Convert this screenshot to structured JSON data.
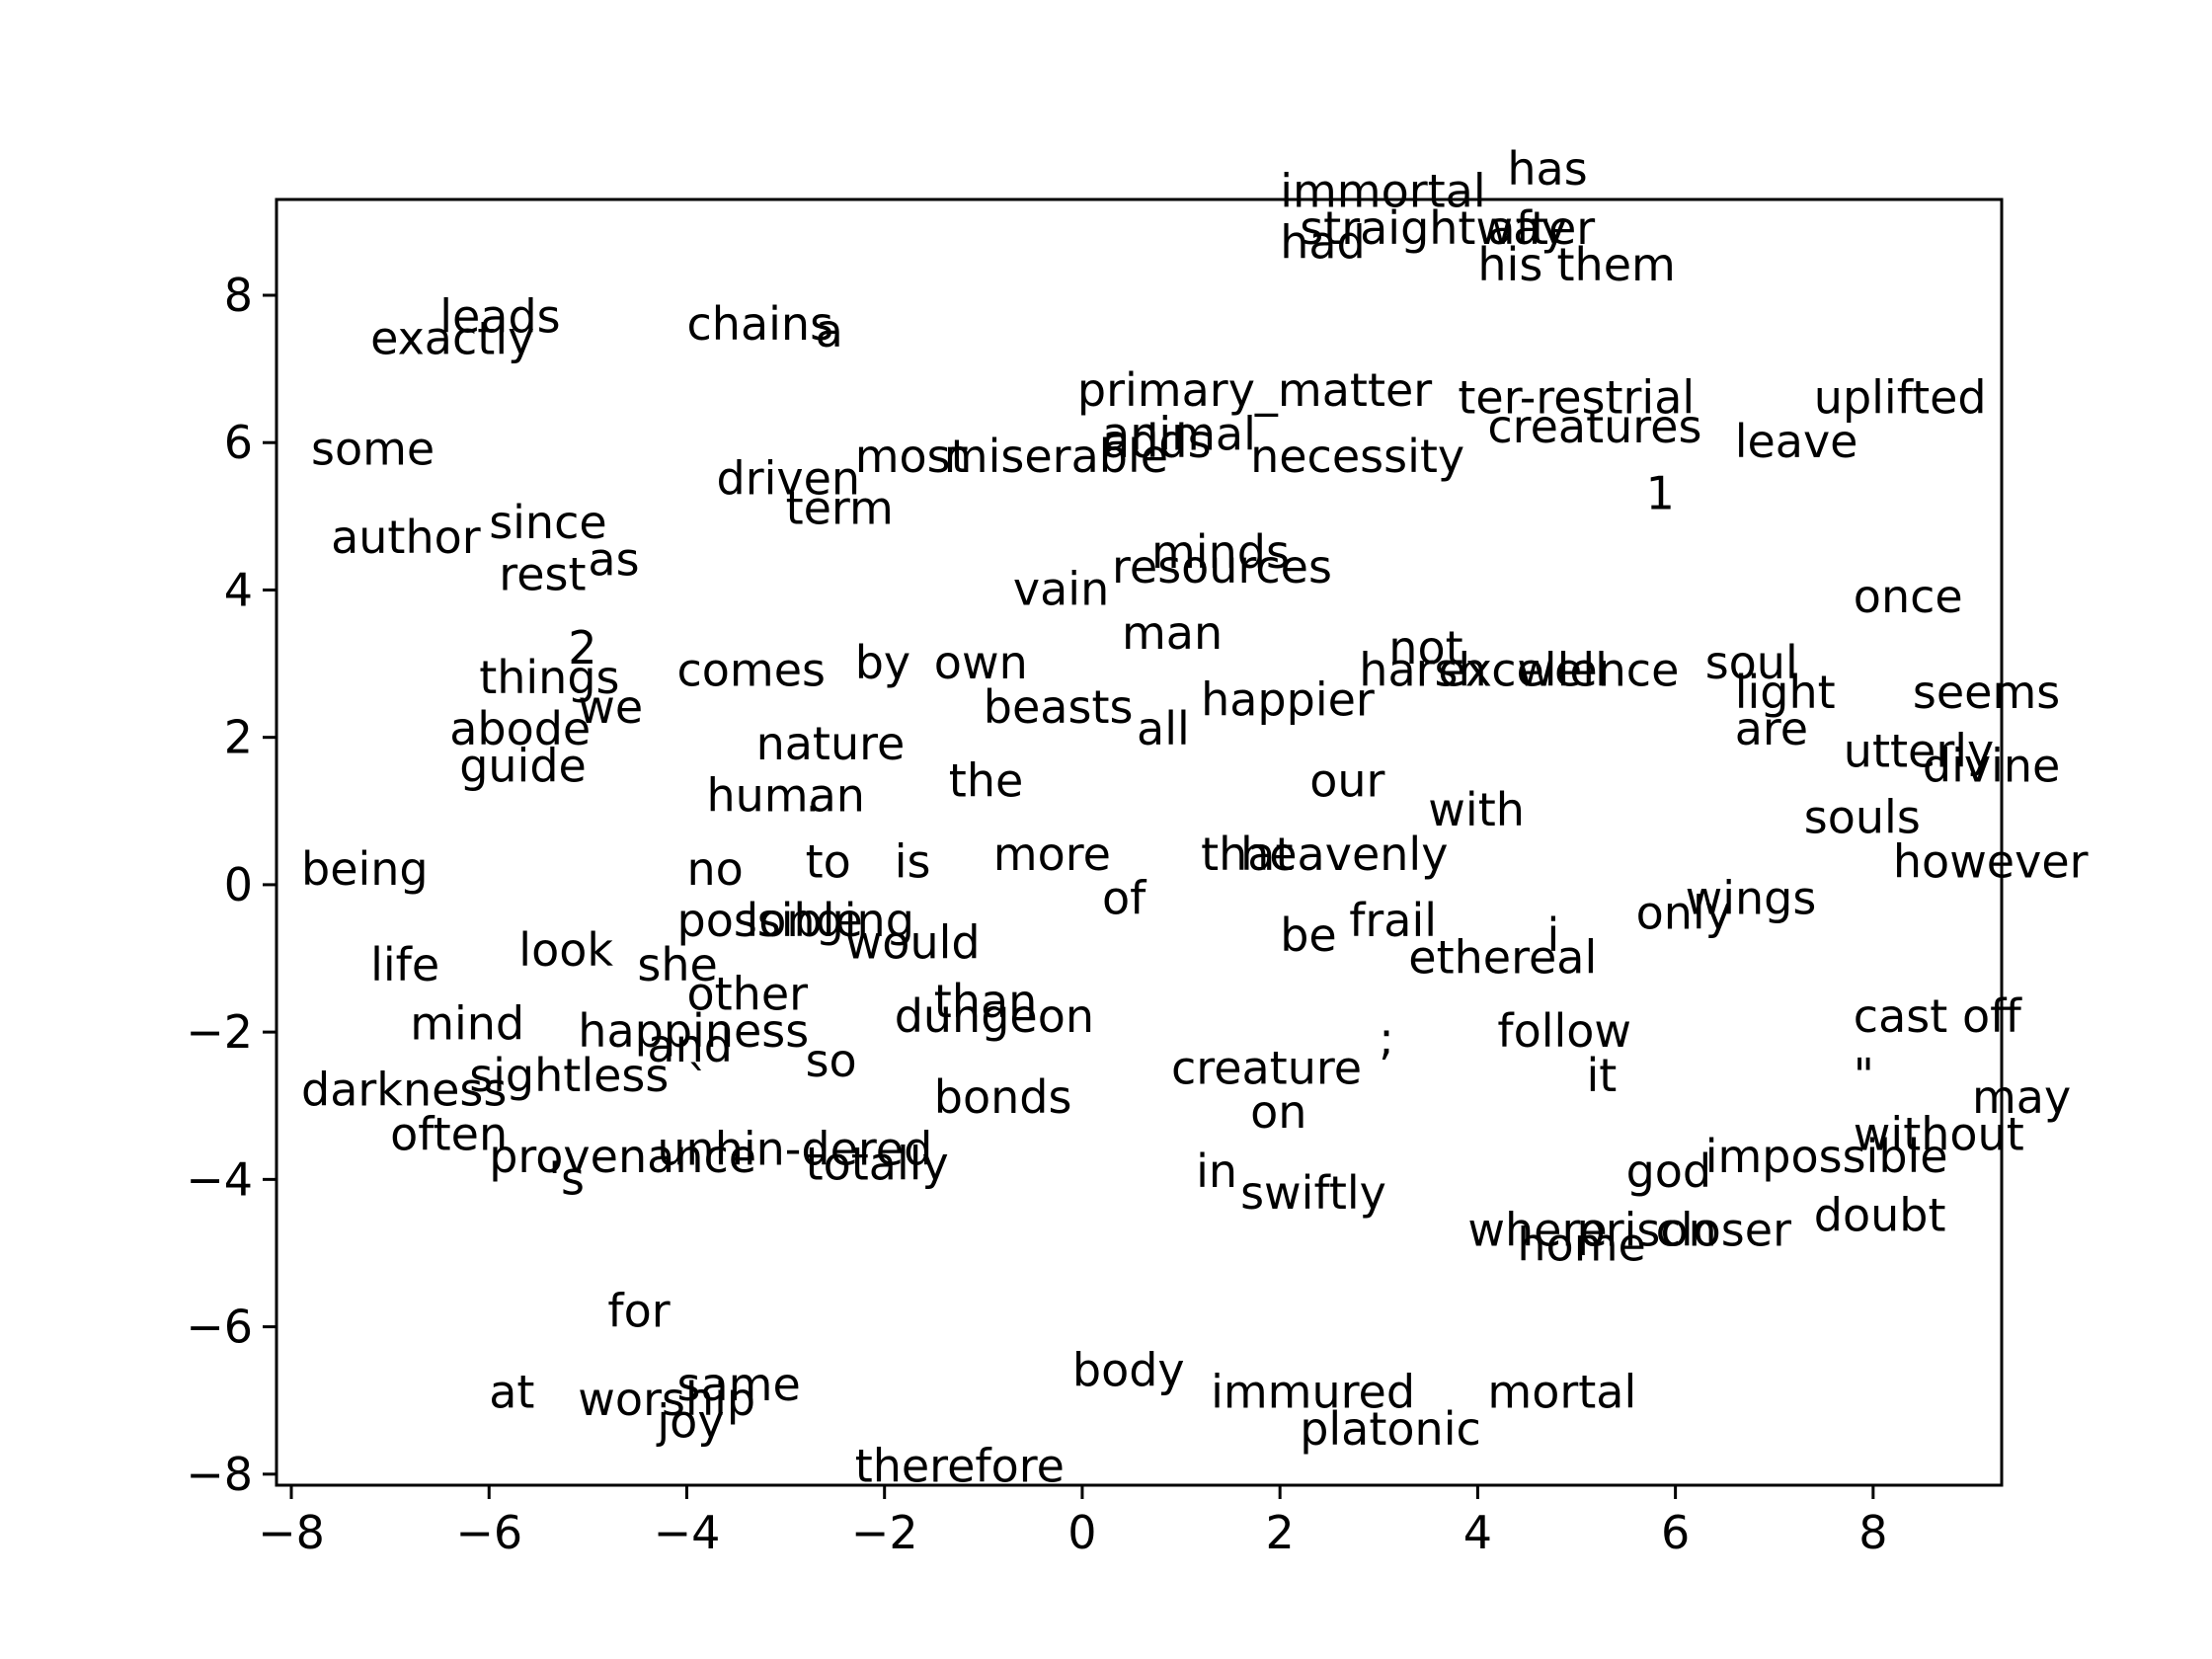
{
  "chart_data": {
    "type": "scatter",
    "title": "",
    "xlabel": "",
    "ylabel": "",
    "xlim": [
      -8.15,
      9.3
    ],
    "ylim": [
      -8.15,
      9.3
    ],
    "xticks": [
      -8,
      -6,
      -4,
      -2,
      0,
      2,
      4,
      6,
      8
    ],
    "yticks": [
      -8,
      -6,
      -4,
      -2,
      0,
      2,
      4,
      6,
      8
    ],
    "tick_labels": {
      "x": [
        "−8",
        "−6",
        "−4",
        "−2",
        "0",
        "2",
        "4",
        "6",
        "8"
      ],
      "y": [
        "−8",
        "−6",
        "−4",
        "−2",
        "0",
        "2",
        "4",
        "6",
        "8"
      ]
    },
    "grid": false,
    "points": [
      {
        "label": "immortal",
        "x": 2.0,
        "y": 9.2
      },
      {
        "label": "has",
        "x": 4.3,
        "y": 9.5
      },
      {
        "label": "had",
        "x": 2.0,
        "y": 8.5
      },
      {
        "label": "straightway",
        "x": 2.2,
        "y": 8.7
      },
      {
        "label": "after",
        "x": 4.1,
        "y": 8.7
      },
      {
        "label": "his",
        "x": 4.0,
        "y": 8.2
      },
      {
        "label": "them",
        "x": 4.8,
        "y": 8.2
      },
      {
        "label": "leads",
        "x": -6.5,
        "y": 7.5
      },
      {
        "label": "exactly",
        "x": -7.2,
        "y": 7.2
      },
      {
        "label": "chains",
        "x": -4.0,
        "y": 7.4
      },
      {
        "label": "a",
        "x": -2.7,
        "y": 7.3
      },
      {
        "label": "primary_matter",
        "x": -0.05,
        "y": 6.5
      },
      {
        "label": "ter-restrial",
        "x": 3.8,
        "y": 6.4
      },
      {
        "label": "uplifted",
        "x": 7.4,
        "y": 6.4
      },
      {
        "label": "creatures",
        "x": 4.1,
        "y": 6.0
      },
      {
        "label": "leave",
        "x": 6.6,
        "y": 5.8
      },
      {
        "label": "some",
        "x": -7.8,
        "y": 5.7
      },
      {
        "label": "animal",
        "x": 0.2,
        "y": 5.9
      },
      {
        "label": "adds",
        "x": 0.2,
        "y": 5.8
      },
      {
        "label": "necessity",
        "x": 1.7,
        "y": 5.6
      },
      {
        "label": "most",
        "x": -2.3,
        "y": 5.6
      },
      {
        "label": "miserable",
        "x": -1.4,
        "y": 5.6
      },
      {
        "label": "driven",
        "x": -3.7,
        "y": 5.3
      },
      {
        "label": "1",
        "x": 5.7,
        "y": 5.1
      },
      {
        "label": "term",
        "x": -3.0,
        "y": 4.9
      },
      {
        "label": "author",
        "x": -7.6,
        "y": 4.5
      },
      {
        "label": "since",
        "x": -6.0,
        "y": 4.7
      },
      {
        "label": "rest",
        "x": -5.9,
        "y": 4.0
      },
      {
        "label": "as",
        "x": -5.0,
        "y": 4.2
      },
      {
        "label": "minds",
        "x": 0.7,
        "y": 4.3
      },
      {
        "label": "resources",
        "x": 0.3,
        "y": 4.1
      },
      {
        "label": "vain",
        "x": -0.7,
        "y": 3.8
      },
      {
        "label": "once",
        "x": 7.8,
        "y": 3.7
      },
      {
        "label": "man",
        "x": 0.4,
        "y": 3.2
      },
      {
        "label": "not",
        "x": 3.1,
        "y": 3.0
      },
      {
        "label": "2",
        "x": -5.2,
        "y": 3.0
      },
      {
        "label": "own",
        "x": -1.5,
        "y": 2.8
      },
      {
        "label": "harsh",
        "x": 2.8,
        "y": 2.7
      },
      {
        "label": "excellence",
        "x": 3.6,
        "y": 2.7
      },
      {
        "label": "well",
        "x": 4.4,
        "y": 2.7
      },
      {
        "label": "soul",
        "x": 6.3,
        "y": 2.8
      },
      {
        "label": "things",
        "x": -6.1,
        "y": 2.6
      },
      {
        "label": "comes",
        "x": -4.1,
        "y": 2.7
      },
      {
        "label": "by",
        "x": -2.3,
        "y": 2.8
      },
      {
        "label": "light",
        "x": 6.6,
        "y": 2.4
      },
      {
        "label": "seems",
        "x": 8.4,
        "y": 2.4
      },
      {
        "label": "beasts",
        "x": -1.0,
        "y": 2.2
      },
      {
        "label": "happier",
        "x": 1.2,
        "y": 2.3
      },
      {
        "label": "we",
        "x": -5.1,
        "y": 2.2
      },
      {
        "label": "abode",
        "x": -6.4,
        "y": 1.9
      },
      {
        "label": "all",
        "x": 0.55,
        "y": 1.9
      },
      {
        "label": "are",
        "x": 6.6,
        "y": 1.9
      },
      {
        "label": "utterly",
        "x": 7.7,
        "y": 1.6
      },
      {
        "label": "divine",
        "x": 8.5,
        "y": 1.4
      },
      {
        "label": "nature",
        "x": -3.3,
        "y": 1.7
      },
      {
        "label": "guide",
        "x": -6.3,
        "y": 1.4
      },
      {
        "label": "the",
        "x": -1.35,
        "y": 1.2
      },
      {
        "label": "our",
        "x": 2.3,
        "y": 1.2
      },
      {
        "label": "human",
        "x": -3.8,
        "y": 1.0
      },
      {
        "label": "with",
        "x": 3.5,
        "y": 0.8
      },
      {
        "label": "souls",
        "x": 7.3,
        "y": 0.7
      },
      {
        "label": "being",
        "x": -7.9,
        "y": 0.0
      },
      {
        "label": "no",
        "x": -4.0,
        "y": 0.0
      },
      {
        "label": "to",
        "x": -2.8,
        "y": 0.1
      },
      {
        "label": "is",
        "x": -1.9,
        "y": 0.1
      },
      {
        "label": "more",
        "x": -0.9,
        "y": 0.2
      },
      {
        "label": "that",
        "x": 1.2,
        "y": 0.2
      },
      {
        "label": "heavenly",
        "x": 1.6,
        "y": 0.2
      },
      {
        "label": "however",
        "x": 8.2,
        "y": 0.1
      },
      {
        "label": "wings",
        "x": 6.1,
        "y": -0.4
      },
      {
        "label": "of",
        "x": 0.2,
        "y": -0.4
      },
      {
        "label": "only",
        "x": 5.6,
        "y": -0.6
      },
      {
        "label": "possible",
        "x": -4.1,
        "y": -0.7
      },
      {
        "label": "longing",
        "x": -3.4,
        "y": -0.7
      },
      {
        "label": "would",
        "x": -2.4,
        "y": -1.0
      },
      {
        "label": "be",
        "x": 2.0,
        "y": -0.9
      },
      {
        "label": "frail",
        "x": 2.7,
        "y": -0.7
      },
      {
        "label": "i",
        "x": 4.7,
        "y": -0.9
      },
      {
        "label": "ethereal",
        "x": 3.3,
        "y": -1.2
      },
      {
        "label": "look",
        "x": -5.7,
        "y": -1.1
      },
      {
        "label": "life",
        "x": -7.2,
        "y": -1.3
      },
      {
        "label": "she",
        "x": -4.5,
        "y": -1.3
      },
      {
        "label": "other",
        "x": -4.0,
        "y": -1.7
      },
      {
        "label": "than",
        "x": -1.5,
        "y": -1.8
      },
      {
        "label": "dungeon",
        "x": -1.9,
        "y": -2.0
      },
      {
        "label": "cast",
        "x": 7.8,
        "y": -2.0
      },
      {
        "label": "off",
        "x": 8.9,
        "y": -2.0
      },
      {
        "label": "mind",
        "x": -6.8,
        "y": -2.1
      },
      {
        "label": "happiness",
        "x": -5.1,
        "y": -2.2
      },
      {
        "label": "and",
        "x": -4.4,
        "y": -2.4
      },
      {
        "label": "follow",
        "x": 4.2,
        "y": -2.2
      },
      {
        "label": ";",
        "x": 3.0,
        "y": -2.3
      },
      {
        "label": "so",
        "x": -2.8,
        "y": -2.6
      },
      {
        "label": "sightless",
        "x": -6.2,
        "y": -2.8
      },
      {
        "label": "creature",
        "x": 0.9,
        "y": -2.7
      },
      {
        "label": "it",
        "x": 5.1,
        "y": -2.8
      },
      {
        "label": "\"",
        "x": 7.8,
        "y": -2.8
      },
      {
        "label": "darkness",
        "x": -7.9,
        "y": -3.0
      },
      {
        "label": "`",
        "x": -4.0,
        "y": -2.9
      },
      {
        "label": "bonds",
        "x": -1.5,
        "y": -3.1
      },
      {
        "label": "on",
        "x": 1.7,
        "y": -3.3
      },
      {
        "label": "may",
        "x": 9.0,
        "y": -3.1
      },
      {
        "label": "often",
        "x": -7.0,
        "y": -3.6
      },
      {
        "label": "without",
        "x": 7.8,
        "y": -3.6
      },
      {
        "label": "provenance",
        "x": -6.0,
        "y": -3.9
      },
      {
        "label": "unhin-dered",
        "x": -4.3,
        "y": -3.8
      },
      {
        "label": "impossible",
        "x": 6.3,
        "y": -3.9
      },
      {
        "label": "totally",
        "x": -2.8,
        "y": -4.0
      },
      {
        "label": "'s",
        "x": -5.4,
        "y": -4.2
      },
      {
        "label": "in",
        "x": 1.15,
        "y": -4.1
      },
      {
        "label": "god",
        "x": 5.5,
        "y": -4.1
      },
      {
        "label": "swiftly",
        "x": 1.6,
        "y": -4.4
      },
      {
        "label": "doubt",
        "x": 7.4,
        "y": -4.7
      },
      {
        "label": "where",
        "x": 3.9,
        "y": -4.9
      },
      {
        "label": "prison",
        "x": 5.0,
        "y": -4.9
      },
      {
        "label": "closer",
        "x": 5.8,
        "y": -4.9
      },
      {
        "label": "home",
        "x": 4.4,
        "y": -5.1
      },
      {
        "label": "for",
        "x": -4.8,
        "y": -6.0
      },
      {
        "label": "body",
        "x": -0.1,
        "y": -6.8
      },
      {
        "label": "same",
        "x": -4.1,
        "y": -7.0
      },
      {
        "label": "at",
        "x": -6.0,
        "y": -7.1
      },
      {
        "label": "worship",
        "x": -5.1,
        "y": -7.2
      },
      {
        "label": "joy",
        "x": -4.3,
        "y": -7.5
      },
      {
        "label": "immured",
        "x": 1.3,
        "y": -7.1
      },
      {
        "label": "mortal",
        "x": 4.1,
        "y": -7.1
      },
      {
        "label": "platonic",
        "x": 2.2,
        "y": -7.6
      },
      {
        "label": "therefore",
        "x": -2.3,
        "y": -8.1
      },
      {
        "label": ".",
        "x": -2.8,
        "y": 1.0
      }
    ]
  }
}
